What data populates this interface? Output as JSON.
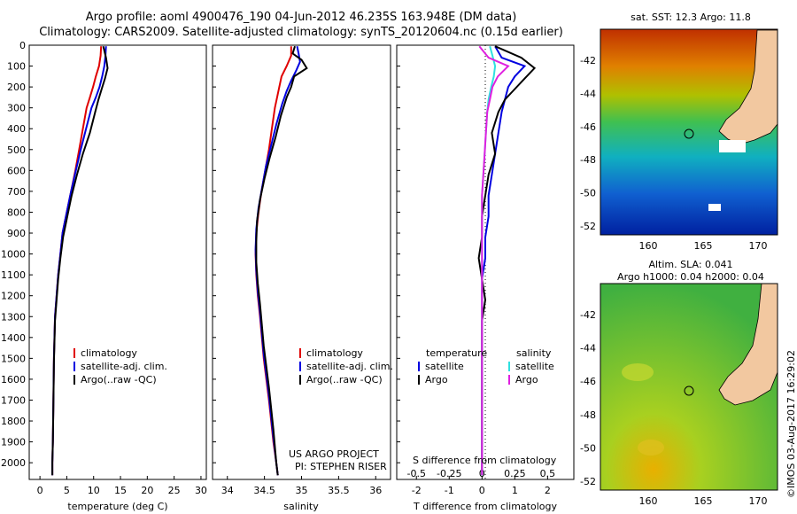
{
  "header": {
    "title_line1": "Argo profile: aoml 4900476_190 04-Jun-2012 46.235S 163.948E (DM data)",
    "title_line2": "Climatology: CARS2009. Satellite-adjusted climatology: synTS_20120604.nc (0.15d earlier)"
  },
  "colors": {
    "climatology": "#e00000",
    "satellite": "#0000e0",
    "argo": "#000000",
    "sal_satellite": "#30e0e0",
    "sal_argo": "#e020e0"
  },
  "map_sst": {
    "title": "sat. SST: 12.3 Argo: 11.8",
    "yticks": [
      "-42",
      "-44",
      "-46",
      "-48",
      "-50",
      "-52"
    ],
    "xticks": [
      "160",
      "165",
      "170"
    ]
  },
  "map_sla": {
    "title_line1": "Altim. SLA: 0.041",
    "title_line2": "Argo h1000: 0.04 h2000: 0.04",
    "yticks": [
      "-42",
      "-44",
      "-46",
      "-48",
      "-50",
      "-52"
    ],
    "xticks": [
      "160",
      "165",
      "170"
    ]
  },
  "watermark": "©IMOS 03-Aug-2017 16:29:02",
  "chart_data": [
    {
      "type": "line",
      "xlabel": "temperature (deg C)",
      "xlim": [
        -2,
        31
      ],
      "ylim": [
        2080,
        0
      ],
      "xticks": [
        "0",
        "5",
        "10",
        "15",
        "20",
        "25",
        "30"
      ],
      "yticks": [
        "0",
        "100",
        "200",
        "300",
        "400",
        "500",
        "600",
        "700",
        "800",
        "900",
        "1000",
        "1100",
        "1200",
        "1300",
        "1400",
        "1500",
        "1600",
        "1700",
        "1800",
        "1900",
        "2000"
      ],
      "legend": [
        "climatology",
        "satellite-adj. clim.",
        "Argo(..raw -QC)"
      ],
      "series": [
        {
          "name": "climatology",
          "color_key": "climatology",
          "x": [
            11.4,
            11.3,
            11.0,
            10.4,
            9.9,
            9.3,
            8.7,
            8.0,
            7.3,
            6.6,
            5.8,
            5.0,
            4.2,
            3.8,
            3.4,
            3.1,
            2.8,
            2.6,
            2.5,
            2.4,
            2.3,
            2.3
          ],
          "y": [
            5,
            50,
            100,
            150,
            200,
            250,
            300,
            400,
            500,
            600,
            700,
            800,
            900,
            1000,
            1100,
            1200,
            1300,
            1500,
            1700,
            1900,
            2000,
            2060
          ]
        },
        {
          "name": "satellite-adj. clim.",
          "color_key": "satellite",
          "x": [
            12.3,
            12.2,
            12.0,
            11.6,
            11.1,
            10.4,
            9.6,
            8.6,
            7.6,
            6.7,
            5.8,
            5.0,
            4.2,
            3.8,
            3.4,
            3.1,
            2.8,
            2.6,
            2.5,
            2.4,
            2.3,
            2.3
          ],
          "y": [
            5,
            50,
            100,
            150,
            200,
            250,
            300,
            400,
            500,
            600,
            700,
            800,
            900,
            1000,
            1100,
            1200,
            1300,
            1500,
            1700,
            1900,
            2000,
            2060
          ]
        },
        {
          "name": "Argo(..raw -QC)",
          "color_key": "argo",
          "x": [
            11.8,
            12.3,
            12.6,
            12.1,
            11.5,
            10.9,
            10.3,
            9.3,
            8.0,
            6.9,
            5.9,
            5.1,
            4.3,
            3.8,
            3.4,
            3.1,
            2.8,
            2.6,
            2.5,
            2.4,
            2.3,
            2.3
          ],
          "y": [
            5,
            60,
            110,
            160,
            210,
            260,
            320,
            420,
            520,
            620,
            720,
            820,
            920,
            1020,
            1120,
            1220,
            1320,
            1520,
            1720,
            1900,
            2000,
            2060
          ]
        }
      ]
    },
    {
      "type": "line",
      "xlabel": "salinity",
      "xlim": [
        33.8,
        36.2
      ],
      "ylim": [
        2080,
        0
      ],
      "xticks": [
        "34",
        "34.5",
        "35",
        "35.5",
        "36"
      ],
      "legend": [
        "climatology",
        "satellite-adj. clim.",
        "Argo(..raw -QC)"
      ],
      "annotation": [
        "US ARGO PROJECT",
        "PI: STEPHEN RISER"
      ],
      "series": [
        {
          "name": "climatology",
          "color_key": "climatology",
          "x": [
            34.86,
            34.86,
            34.8,
            34.73,
            34.7,
            34.67,
            34.64,
            34.6,
            34.56,
            34.51,
            34.46,
            34.42,
            34.39,
            34.38,
            34.39,
            34.41,
            34.44,
            34.49,
            34.56,
            34.62,
            34.66,
            34.68
          ],
          "y": [
            5,
            50,
            100,
            150,
            200,
            250,
            300,
            400,
            500,
            600,
            700,
            800,
            900,
            1000,
            1100,
            1200,
            1300,
            1500,
            1700,
            1900,
            2000,
            2060
          ]
        },
        {
          "name": "satellite-adj. clim.",
          "color_key": "satellite",
          "x": [
            34.94,
            34.96,
            34.98,
            34.93,
            34.86,
            34.8,
            34.74,
            34.66,
            34.59,
            34.52,
            34.47,
            34.42,
            34.39,
            34.38,
            34.39,
            34.41,
            34.44,
            34.49,
            34.56,
            34.62,
            34.66,
            34.68
          ],
          "y": [
            5,
            40,
            80,
            120,
            170,
            220,
            280,
            380,
            480,
            580,
            680,
            780,
            880,
            980,
            1080,
            1180,
            1280,
            1480,
            1680,
            1880,
            2000,
            2060
          ]
        },
        {
          "name": "Argo(..raw -QC)",
          "color_key": "argo",
          "x": [
            34.91,
            34.88,
            35.0,
            35.07,
            34.9,
            34.86,
            34.8,
            34.72,
            34.65,
            34.57,
            34.5,
            34.44,
            34.4,
            34.39,
            34.39,
            34.41,
            34.44,
            34.49,
            34.56,
            34.62,
            34.66,
            34.68
          ],
          "y": [
            5,
            40,
            70,
            110,
            150,
            200,
            250,
            340,
            440,
            540,
            640,
            740,
            840,
            940,
            1040,
            1140,
            1240,
            1440,
            1640,
            1840,
            2000,
            2060
          ]
        }
      ]
    },
    {
      "type": "line",
      "xlabel": "T difference from climatology",
      "xlabel_top": "S difference from climatology",
      "xlim": [
        -2.6,
        2.8
      ],
      "ylim": [
        2080,
        0
      ],
      "xticks": [
        "-2",
        "-1",
        "0",
        "1",
        "2"
      ],
      "xticks_sal": [
        "-0.5",
        "-0.25",
        "0",
        "0.25",
        "0.5"
      ],
      "legend_t": [
        "temperature",
        "satellite",
        "Argo"
      ],
      "legend_s": [
        "salinity",
        "satellite",
        "Argo"
      ],
      "series": [
        {
          "name": "satellite",
          "group": "temperature",
          "color_key": "satellite",
          "x": [
            0.4,
            0.6,
            1.3,
            1.0,
            0.8,
            0.7,
            0.6,
            0.5,
            0.4,
            0.3,
            0.2,
            0.2,
            0.1,
            0.1,
            0.0,
            0.0,
            0.0,
            0.0,
            0.0,
            0.0,
            0.0
          ],
          "y": [
            5,
            60,
            100,
            150,
            200,
            260,
            320,
            420,
            520,
            620,
            720,
            820,
            920,
            1020,
            1120,
            1220,
            1320,
            1520,
            1720,
            1900,
            2060
          ]
        },
        {
          "name": "Argo",
          "group": "temperature",
          "color_key": "argo",
          "x": [
            0.4,
            1.2,
            1.6,
            1.3,
            1.0,
            0.7,
            0.5,
            0.3,
            0.4,
            0.2,
            0.1,
            0.0,
            0.0,
            -0.1,
            0.0,
            0.1,
            0.0,
            0.0,
            0.0,
            0.0,
            0.0
          ],
          "y": [
            5,
            60,
            110,
            160,
            210,
            260,
            320,
            420,
            520,
            620,
            720,
            820,
            920,
            1020,
            1120,
            1220,
            1320,
            1520,
            1720,
            1900,
            2060
          ]
        },
        {
          "name": "satellite",
          "group": "salinity",
          "color_key": "sal_satellite",
          "x": [
            0.06,
            0.08,
            0.1,
            0.09,
            0.07,
            0.05,
            0.04,
            0.03,
            0.02,
            0.01,
            0.0,
            0.0,
            0.0,
            0.0,
            0.0,
            0.0,
            0.0,
            0.0,
            0.0,
            0.0,
            0.0
          ],
          "y": [
            5,
            50,
            100,
            150,
            200,
            260,
            320,
            420,
            520,
            620,
            720,
            820,
            920,
            1020,
            1120,
            1220,
            1320,
            1520,
            1720,
            1900,
            2060
          ]
        },
        {
          "name": "Argo",
          "group": "salinity",
          "color_key": "sal_argo",
          "x": [
            -0.02,
            0.05,
            0.2,
            0.12,
            0.08,
            0.06,
            0.04,
            0.03,
            0.02,
            0.01,
            0.0,
            0.0,
            0.0,
            0.0,
            0.0,
            0.0,
            0.0,
            0.0,
            0.0,
            0.0,
            0.0
          ],
          "y": [
            5,
            60,
            100,
            150,
            200,
            260,
            320,
            420,
            520,
            620,
            720,
            820,
            920,
            1020,
            1120,
            1220,
            1320,
            1520,
            1720,
            1900,
            2060
          ]
        }
      ]
    }
  ]
}
